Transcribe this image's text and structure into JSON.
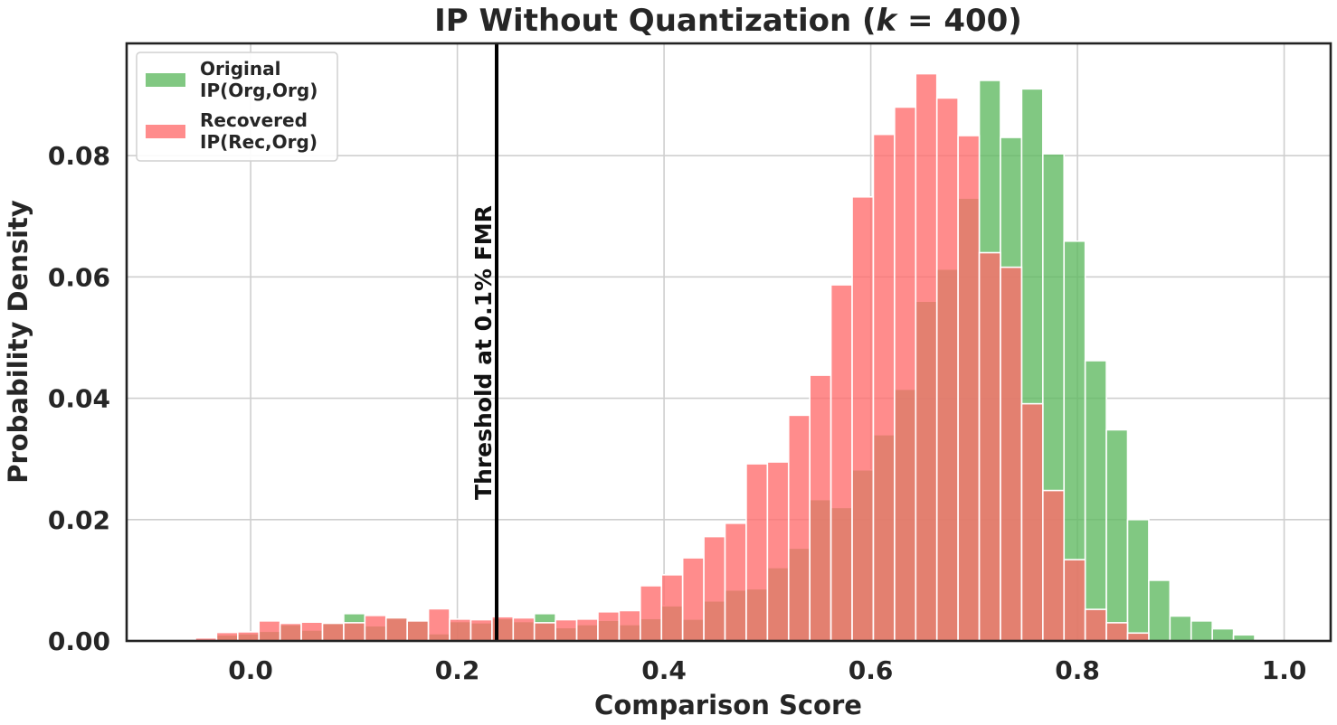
{
  "chart_data": {
    "type": "bar",
    "title_prefix": "IP Without Quantization (",
    "title_k": "k",
    "title_suffix": " = 400)",
    "xlabel": "Comparison Score",
    "ylabel": "Probability Density",
    "xlim": [
      -0.12,
      1.045
    ],
    "ylim": [
      0,
      0.0985
    ],
    "xticks": [
      {
        "value": 0.0,
        "label": "0.0"
      },
      {
        "value": 0.2,
        "label": "0.2"
      },
      {
        "value": 0.4,
        "label": "0.4"
      },
      {
        "value": 0.6,
        "label": "0.6"
      },
      {
        "value": 0.8,
        "label": "0.8"
      },
      {
        "value": 1.0,
        "label": "1.0"
      }
    ],
    "yticks": [
      {
        "value": 0.0,
        "label": "0.00"
      },
      {
        "value": 0.02,
        "label": "0.02"
      },
      {
        "value": 0.04,
        "label": "0.04"
      },
      {
        "value": 0.06,
        "label": "0.06"
      },
      {
        "value": 0.08,
        "label": "0.08"
      }
    ],
    "grid": true,
    "legend_position": "upper-left",
    "bin_width": 0.0205,
    "bin_start": -0.0535,
    "threshold": {
      "x": 0.238,
      "label": "Threshold at 0.1% FMR"
    },
    "series": [
      {
        "name": "Original\nIP(Org,Org)",
        "color": "#5db95f",
        "values": [
          0,
          0.001,
          0.0012,
          0.0016,
          0.0027,
          0.0018,
          0.003,
          0.0045,
          0.0025,
          0.004,
          0.0033,
          0.0012,
          0.0032,
          0.003,
          0.0037,
          0.0032,
          0.0045,
          0.0022,
          0.0027,
          0.0034,
          0.0027,
          0.0037,
          0.0058,
          0.0036,
          0.0066,
          0.0084,
          0.0086,
          0.0121,
          0.0153,
          0.0233,
          0.022,
          0.0282,
          0.034,
          0.0415,
          0.056,
          0.0613,
          0.073,
          0.0924,
          0.083,
          0.091,
          0.0803,
          0.0659,
          0.0462,
          0.0348,
          0.02,
          0.01,
          0.0041,
          0.0033,
          0.002,
          0.001
        ]
      },
      {
        "name": "Recovered\nIP(Rec,Org)",
        "color": "#ff6b6b",
        "values": [
          0.0005,
          0.0014,
          0.0015,
          0.0033,
          0.0029,
          0.0031,
          0.0029,
          0.003,
          0.0042,
          0.0038,
          0.0033,
          0.0053,
          0.0036,
          0.0035,
          0.004,
          0.0038,
          0.003,
          0.0035,
          0.0036,
          0.0048,
          0.005,
          0.0091,
          0.0109,
          0.0137,
          0.0172,
          0.0194,
          0.0292,
          0.0295,
          0.0372,
          0.0438,
          0.0587,
          0.0732,
          0.0835,
          0.088,
          0.0935,
          0.0895,
          0.0833,
          0.064,
          0.0616,
          0.0391,
          0.0248,
          0.0134,
          0.0052,
          0.003,
          0.0013,
          0,
          0,
          0,
          0,
          0
        ]
      }
    ]
  }
}
